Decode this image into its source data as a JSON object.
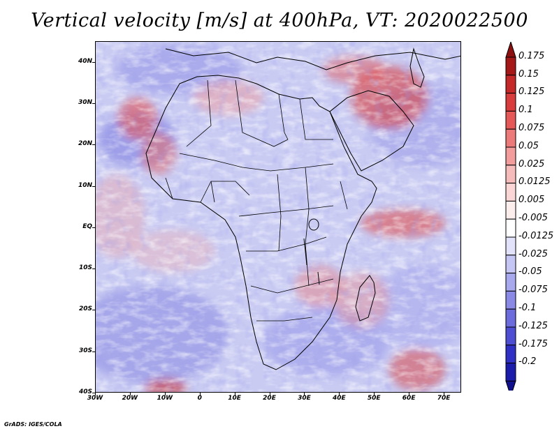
{
  "title": "Vertical velocity [m/s] at 400hPa, VT: 2020022500",
  "footer": "GrADS: IGES/COLA",
  "map": {
    "variable": "Vertical velocity",
    "units": "m/s",
    "level": "400hPa",
    "valid_time": "2020022500",
    "lat_range": [
      -40,
      45
    ],
    "lon_range": [
      -30,
      75
    ],
    "lat_ticks": [
      {
        "value": 40,
        "label": "40N"
      },
      {
        "value": 30,
        "label": "30N"
      },
      {
        "value": 20,
        "label": "20N"
      },
      {
        "value": 10,
        "label": "10N"
      },
      {
        "value": 0,
        "label": "EQ"
      },
      {
        "value": -10,
        "label": "10S"
      },
      {
        "value": -20,
        "label": "20S"
      },
      {
        "value": -30,
        "label": "30S"
      },
      {
        "value": -40,
        "label": "40S"
      }
    ],
    "lon_ticks": [
      {
        "value": -30,
        "label": "30W"
      },
      {
        "value": -20,
        "label": "20W"
      },
      {
        "value": -10,
        "label": "10W"
      },
      {
        "value": 0,
        "label": "0"
      },
      {
        "value": 10,
        "label": "10E"
      },
      {
        "value": 20,
        "label": "20E"
      },
      {
        "value": 30,
        "label": "30E"
      },
      {
        "value": 40,
        "label": "40E"
      },
      {
        "value": 50,
        "label": "50E"
      },
      {
        "value": 60,
        "label": "60E"
      },
      {
        "value": 70,
        "label": "70E"
      }
    ]
  },
  "colorbar": {
    "levels": [
      {
        "label": "0.175",
        "color": "#a41818"
      },
      {
        "label": "0.15",
        "color": "#c42828"
      },
      {
        "label": "0.125",
        "color": "#d83c3c"
      },
      {
        "label": "0.1",
        "color": "#e45858"
      },
      {
        "label": "0.075",
        "color": "#ec7a7a"
      },
      {
        "label": "0.05",
        "color": "#f29c9c"
      },
      {
        "label": "0.025",
        "color": "#f6bcbc"
      },
      {
        "label": "0.0125",
        "color": "#fad6d6"
      },
      {
        "label": "0.005",
        "color": "#fdeeee"
      },
      {
        "label": "-0.005",
        "color": "#ffffff"
      },
      {
        "label": "-0.0125",
        "color": "#e2e2fa"
      },
      {
        "label": "-0.025",
        "color": "#c6c6f4"
      },
      {
        "label": "-0.05",
        "color": "#a8a8ee"
      },
      {
        "label": "-0.075",
        "color": "#8a8ae6"
      },
      {
        "label": "-0.1",
        "color": "#6c6cdc"
      },
      {
        "label": "-0.125",
        "color": "#4e4ed2"
      },
      {
        "label": "-0.175",
        "color": "#3030c4"
      },
      {
        "label": "-0.2",
        "color": "#1c1caa"
      }
    ],
    "top_arrow_color": "#8c1010",
    "bottom_arrow_color": "#10108c"
  }
}
